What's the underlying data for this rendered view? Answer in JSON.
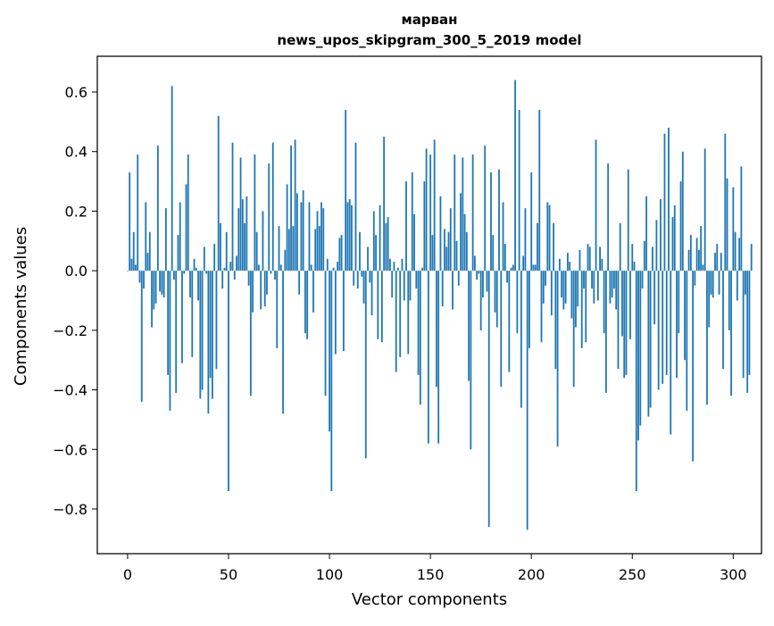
{
  "chart_data": {
    "type": "bar",
    "title": "марван",
    "subtitle": "news_upos_skipgram_300_5_2019 model",
    "xlabel": "Vector components",
    "ylabel": "Components values",
    "xlim": [
      -15,
      314
    ],
    "ylim": [
      -0.95,
      0.72
    ],
    "xticks": [
      0,
      50,
      100,
      150,
      200,
      250,
      300
    ],
    "xtick_labels": [
      "0",
      "50",
      "100",
      "150",
      "200",
      "250",
      "300"
    ],
    "yticks": [
      -0.8,
      -0.6,
      -0.4,
      -0.2,
      0.0,
      0.2,
      0.4,
      0.6
    ],
    "ytick_labels": [
      "−0.8",
      "−0.6",
      "−0.4",
      "−0.2",
      "0.0",
      "0.2",
      "0.4",
      "0.6"
    ],
    "grid": false,
    "bar_color": "#1f77b4",
    "values": [
      0.0,
      0.33,
      0.04,
      0.13,
      0.02,
      0.39,
      -0.04,
      -0.44,
      -0.06,
      0.23,
      0.06,
      0.13,
      -0.19,
      -0.13,
      -0.11,
      0.42,
      -0.07,
      -0.08,
      -0.09,
      0.21,
      -0.35,
      -0.47,
      0.62,
      -0.03,
      -0.41,
      0.12,
      0.23,
      -0.31,
      -0.01,
      0.29,
      0.39,
      -0.09,
      -0.29,
      0.04,
      0.01,
      -0.1,
      -0.43,
      -0.4,
      0.08,
      -0.01,
      -0.48,
      -0.36,
      -0.43,
      0.09,
      -0.33,
      0.52,
      0.16,
      -0.06,
      0.01,
      0.13,
      -0.74,
      0.03,
      0.43,
      -0.03,
      0.05,
      0.21,
      0.38,
      0.24,
      0.16,
      0.25,
      -0.05,
      -0.42,
      -0.14,
      0.39,
      0.13,
      0.02,
      -0.13,
      0.2,
      -0.12,
      -0.08,
      0.36,
      -0.01,
      0.43,
      -0.03,
      -0.26,
      0.15,
      0.02,
      -0.48,
      0.07,
      0.29,
      0.14,
      0.42,
      0.15,
      0.44,
      0.26,
      -0.08,
      0.23,
      0.27,
      -0.21,
      -0.23,
      0.23,
      0.02,
      -0.14,
      0.14,
      0.2,
      0.15,
      0.23,
      0.21,
      -0.42,
      0.04,
      -0.54,
      -0.74,
      0.01,
      -0.28,
      0.03,
      0.11,
      0.12,
      -0.27,
      0.54,
      0.23,
      0.24,
      0.22,
      -0.05,
      0.43,
      -0.06,
      0.13,
      -0.02,
      -0.11,
      -0.63,
      0.08,
      -0.04,
      -0.15,
      0.2,
      0.12,
      -0.23,
      0.22,
      -0.24,
      0.45,
      0.16,
      0.18,
      0.04,
      -0.09,
      0.03,
      -0.34,
      0.01,
      -0.29,
      0.04,
      -0.1,
      0.3,
      -0.28,
      -0.1,
      0.33,
      0.19,
      -0.06,
      -0.35,
      -0.45,
      0.01,
      0.3,
      0.41,
      -0.58,
      0.39,
      0.12,
      0.44,
      -0.39,
      -0.58,
      0.25,
      -0.12,
      0.14,
      0.08,
      0.13,
      0.21,
      -0.13,
      0.39,
      0.1,
      -0.05,
      0.26,
      0.38,
      0.19,
      0.13,
      -0.37,
      -0.6,
      0.39,
      0.05,
      -0.03,
      -0.01,
      -0.2,
      -0.09,
      0.42,
      -0.07,
      -0.86,
      0.33,
      0.12,
      -0.14,
      -0.19,
      0.34,
      -0.39,
      0.23,
      0.09,
      -0.04,
      -0.34,
      0.01,
      0.02,
      0.64,
      -0.21,
      0.54,
      -0.46,
      0.05,
      0.21,
      -0.87,
      -0.26,
      0.33,
      0.02,
      0.02,
      0.16,
      0.54,
      -0.24,
      -0.11,
      -0.05,
      0.23,
      0.22,
      -0.15,
      0.16,
      -0.33,
      -0.59,
      0.04,
      -0.09,
      -0.13,
      -0.11,
      0.06,
      0.03,
      -0.16,
      -0.39,
      -0.19,
      -0.12,
      0.07,
      -0.26,
      -0.06,
      -0.24,
      0.09,
      0.08,
      -0.06,
      -0.11,
      0.44,
      -0.1,
      0.08,
      0.04,
      -0.21,
      -0.41,
      0.36,
      -0.11,
      -0.09,
      -0.06,
      -0.13,
      -0.33,
      0.16,
      -0.22,
      -0.36,
      -0.35,
      0.34,
      -0.23,
      0.09,
      0.03,
      -0.74,
      -0.57,
      -0.52,
      -0.06,
      0.1,
      0.25,
      -0.49,
      -0.46,
      0.08,
      -0.18,
      0.17,
      -0.4,
      0.24,
      -0.38,
      0.46,
      -0.35,
      0.48,
      -0.55,
      0.18,
      0.22,
      -0.36,
      -0.21,
      0.3,
      0.4,
      -0.3,
      -0.47,
      0.07,
      0.12,
      -0.64,
      -0.05,
      0.11,
      0.07,
      0.15,
      0.02,
      0.41,
      -0.45,
      -0.19,
      -0.08,
      -0.09,
      0.06,
      0.09,
      -0.08,
      0.06,
      -0.33,
      0.46,
      0.31,
      -0.2,
      -0.42,
      0.28,
      0.13,
      -0.1,
      0.11,
      0.35,
      -0.36,
      -0.08,
      -0.41,
      -0.35,
      0.09
    ]
  }
}
